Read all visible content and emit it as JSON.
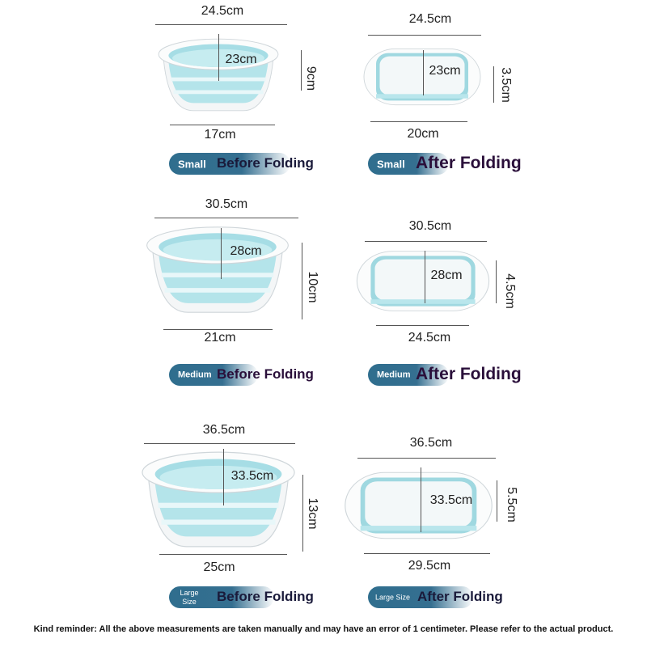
{
  "panels": [
    {
      "size": "Small",
      "title": "Before Folding",
      "top": "24.5cm",
      "depth": "23cm",
      "height": "9cm",
      "bottom": "17cm"
    },
    {
      "size": "Small",
      "title": "After Folding",
      "top": "24.5cm",
      "depth": "23cm",
      "height": "3.5cm",
      "bottom": "20cm"
    },
    {
      "size": "Medium",
      "title": "Before Folding",
      "top": "30.5cm",
      "depth": "28cm",
      "height": "10cm",
      "bottom": "21cm"
    },
    {
      "size": "Medium",
      "title": "After Folding",
      "top": "30.5cm",
      "depth": "28cm",
      "height": "4.5cm",
      "bottom": "24.5cm"
    },
    {
      "size": "Large Size",
      "title": "Before Folding",
      "top": "36.5cm",
      "depth": "33.5cm",
      "height": "13cm",
      "bottom": "25cm"
    },
    {
      "size": "Large Size",
      "title": "After Folding",
      "top": "36.5cm",
      "depth": "33.5cm",
      "height": "5.5cm",
      "bottom": "29.5cm"
    }
  ],
  "footer": "Kind reminder: All the above measurements are taken manually and may have an error of 1 centimeter. Please refer to the actual product.",
  "colors": {
    "pill": "#2f6e8e",
    "basin_blue": "#aee3ea"
  }
}
